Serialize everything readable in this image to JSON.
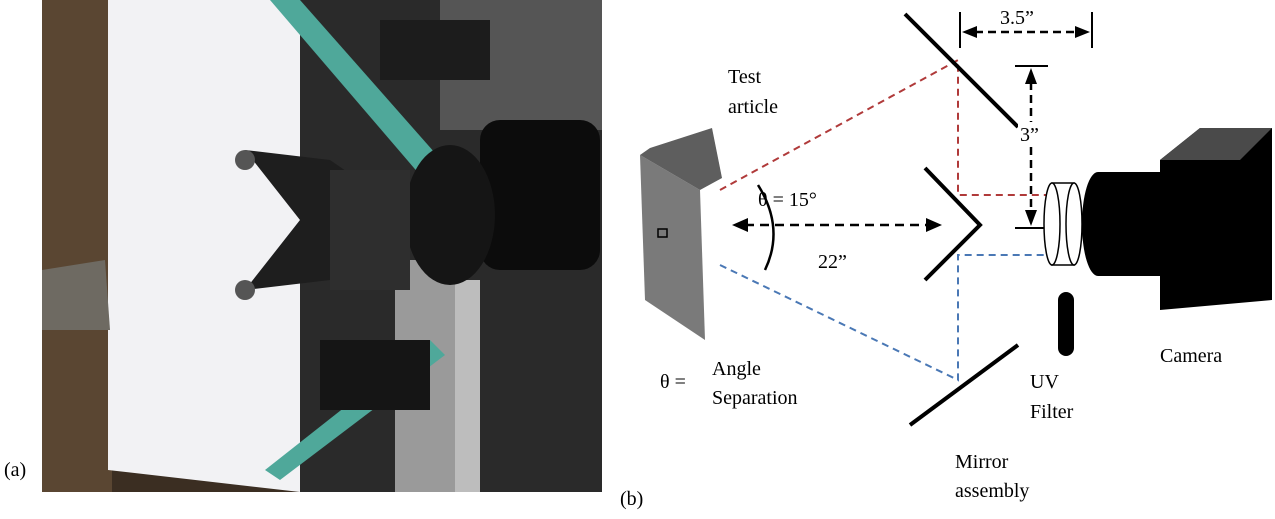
{
  "panel_a": {
    "label": "(a)"
  },
  "panel_b": {
    "label": "(b)",
    "test_article": [
      "Test",
      "article"
    ],
    "angle": "θ = 15°",
    "distance": "22”",
    "mirror_width": "3.5”",
    "mirror_height": "3”",
    "legend_symbol": "θ =",
    "legend_text": [
      "Angle",
      "Separation"
    ],
    "mirror_assembly": [
      "Mirror",
      "assembly"
    ],
    "uv_filter": [
      "UV",
      "Filter"
    ],
    "camera": "Camera"
  }
}
